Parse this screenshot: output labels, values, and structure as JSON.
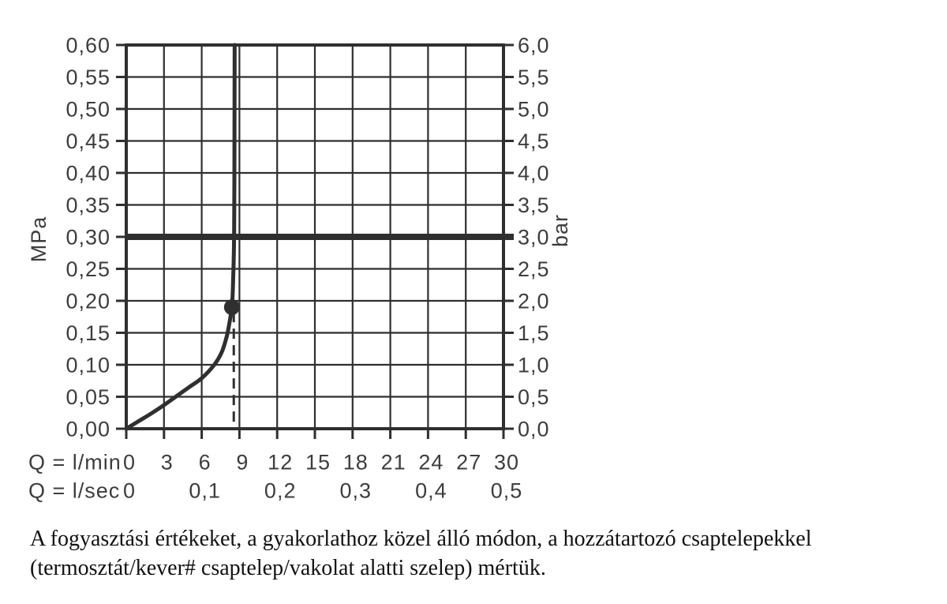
{
  "chart_data": {
    "type": "line",
    "title": "",
    "line_color": "#2f2f2f",
    "text_color": "#3d3d3d",
    "grid": {
      "on": true,
      "x_step": 3,
      "y_step": 0.05
    },
    "x_axis": {
      "range": [
        0,
        30
      ],
      "row_lmin": {
        "prefix": "Q = l/min",
        "values": [
          0,
          3,
          6,
          9,
          12,
          15,
          18,
          21,
          24,
          27,
          30
        ],
        "labels": [
          "0",
          "3",
          "6",
          "9",
          "12",
          "15",
          "18",
          "21",
          "24",
          "27",
          "30"
        ]
      },
      "row_lsec": {
        "prefix": "Q = l/sec",
        "values": [
          0,
          6,
          12,
          18,
          24,
          30
        ],
        "labels": [
          "0",
          "0,1",
          "0,2",
          "0,3",
          "0,4",
          "0,5"
        ]
      }
    },
    "y_axis_left": {
      "unit": "MPa",
      "range": [
        0,
        0.6
      ],
      "values": [
        0,
        0.05,
        0.1,
        0.15,
        0.2,
        0.25,
        0.3,
        0.35,
        0.4,
        0.45,
        0.5,
        0.55,
        0.6
      ],
      "labels": [
        "0,00",
        "0,05",
        "0,10",
        "0,15",
        "0,20",
        "0,25",
        "0,30",
        "0,35",
        "0,40",
        "0,45",
        "0,50",
        "0,55",
        "0,60"
      ]
    },
    "y_axis_right": {
      "unit": "bar",
      "range": [
        0,
        6
      ],
      "values": [
        0,
        0.05,
        0.1,
        0.15,
        0.2,
        0.25,
        0.3,
        0.35,
        0.4,
        0.45,
        0.5,
        0.55,
        0.6
      ],
      "labels": [
        "0,0",
        "0,5",
        "1,0",
        "1,5",
        "2,0",
        "2,5",
        "3,0",
        "3,5",
        "4,0",
        "4,5",
        "5,0",
        "5,5",
        "6,0"
      ]
    },
    "series": [
      {
        "name": "flow-curve",
        "points": [
          [
            0,
            0
          ],
          [
            1,
            0.012
          ],
          [
            2,
            0.024
          ],
          [
            3,
            0.037
          ],
          [
            4,
            0.051
          ],
          [
            5,
            0.065
          ],
          [
            6,
            0.079
          ],
          [
            7,
            0.1
          ],
          [
            7.6,
            0.12
          ],
          [
            8.0,
            0.145
          ],
          [
            8.2,
            0.165
          ],
          [
            8.4,
            0.19
          ],
          [
            8.48,
            0.22
          ],
          [
            8.54,
            0.26
          ],
          [
            8.58,
            0.31
          ],
          [
            8.6,
            0.4
          ],
          [
            8.61,
            0.5
          ],
          [
            8.62,
            0.6
          ]
        ]
      }
    ],
    "marker": {
      "x": 8.4,
      "y": 0.19
    },
    "dashed_drop_x": 8.55,
    "reference_line_y": 0.3
  },
  "caption": {
    "line1": "A fogyasztási értékeket, a gyakorlathoz közel álló módon, a hozzátartozó csaptelepekkel",
    "line2": "(termosztát/kever# csaptelep/vakolat alatti szelep) mértük."
  }
}
